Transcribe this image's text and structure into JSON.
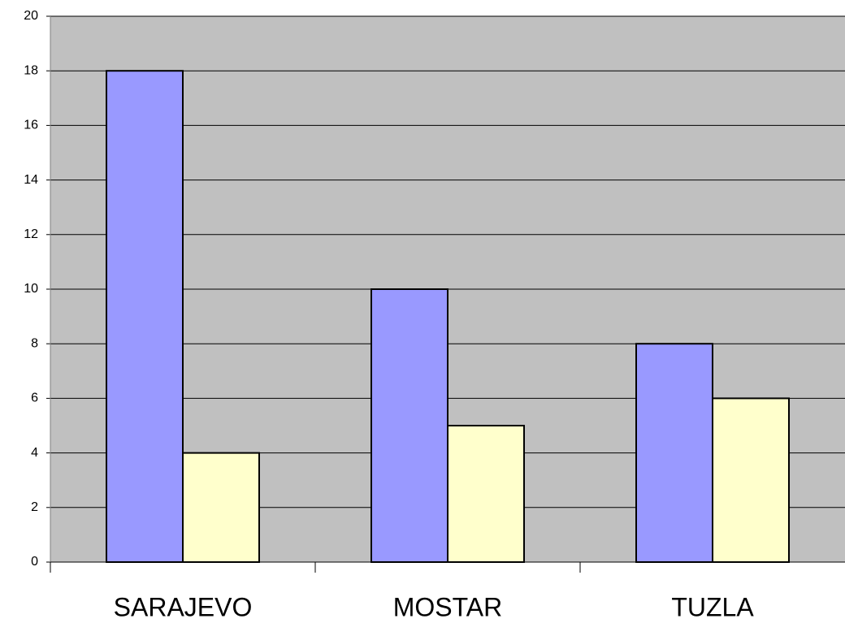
{
  "chart_data": {
    "type": "bar",
    "categories": [
      "SARAJEVO",
      "MOSTAR",
      "TUZLA"
    ],
    "series": [
      {
        "color": "#9999ff",
        "values": [
          18,
          10,
          8
        ]
      },
      {
        "color": "#ffffcc",
        "values": [
          4,
          5,
          6
        ]
      }
    ],
    "ylim": [
      0,
      20
    ],
    "yticks": [
      0,
      2,
      4,
      6,
      8,
      10,
      12,
      14,
      16,
      18,
      20
    ],
    "grid": true
  }
}
